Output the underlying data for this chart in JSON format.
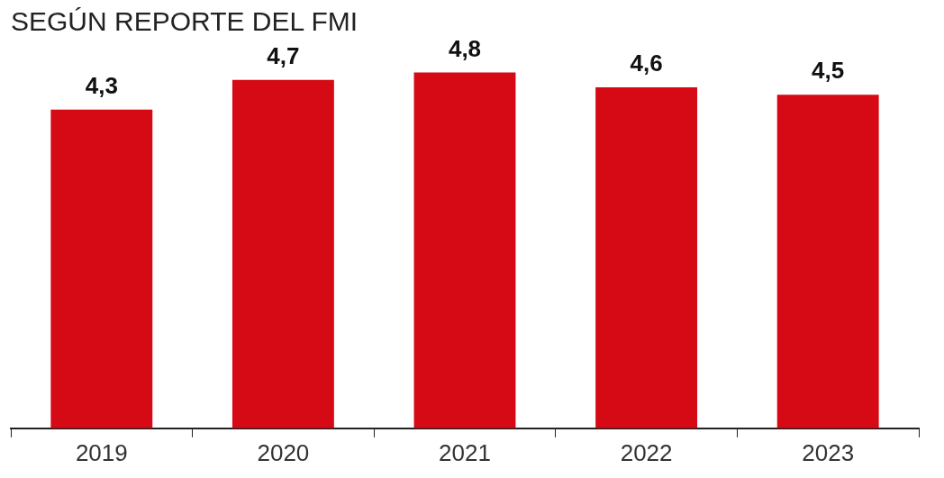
{
  "chart_data": {
    "type": "bar",
    "title": "SEGÚN REPORTE DEL FMI",
    "categories": [
      "2019",
      "2020",
      "2021",
      "2022",
      "2023"
    ],
    "values": [
      4.3,
      4.7,
      4.8,
      4.6,
      4.5
    ],
    "value_labels": [
      "4,3",
      "4,7",
      "4,8",
      "4,6",
      "4,5"
    ],
    "color": "#d50a15",
    "grid": false,
    "legend": false
  }
}
